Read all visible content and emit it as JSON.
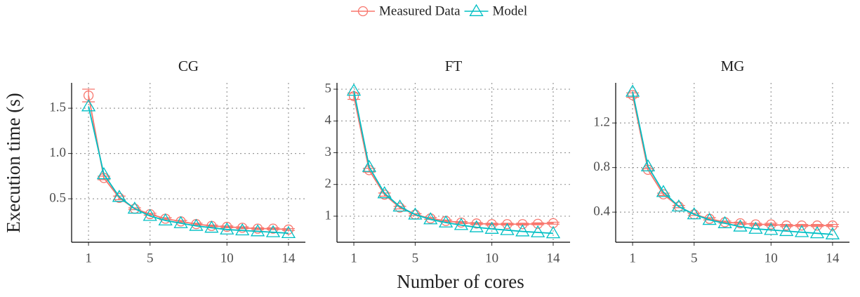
{
  "legend_position": "top",
  "xlabel": "Number of cores",
  "ylabel": "Execution time (s)",
  "chart_data": [
    {
      "type": "line",
      "title": "CG",
      "grid": true,
      "x": [
        1,
        2,
        3,
        4,
        5,
        6,
        7,
        8,
        9,
        10,
        11,
        12,
        13,
        14
      ],
      "xlim": [
        -0.1,
        15.1
      ],
      "xticks": [
        1,
        5,
        10,
        14
      ],
      "ylim": [
        0.02,
        1.78
      ],
      "yticks": [
        0.5,
        {
          "value": 1,
          "label": "1.0"
        },
        1.5
      ],
      "series": [
        {
          "name": "Measured Data",
          "color": "#F8766D",
          "marker": "circle",
          "values": [
            1.64,
            0.73,
            0.51,
            0.39,
            0.33,
            0.28,
            0.25,
            0.22,
            0.2,
            0.19,
            0.18,
            0.17,
            0.17,
            0.16
          ],
          "errors": [
            0.07,
            0.02,
            0.02,
            0.01,
            0.01,
            0.01,
            0.01,
            0.01,
            0.01,
            0.01,
            0.01,
            0.01,
            0.01,
            0.01
          ]
        },
        {
          "name": "Model",
          "color": "#00BFC4",
          "marker": "triangle",
          "values": [
            1.52,
            0.77,
            0.52,
            0.39,
            0.31,
            0.26,
            0.23,
            0.2,
            0.18,
            0.16,
            0.15,
            0.14,
            0.13,
            0.12
          ]
        }
      ]
    },
    {
      "type": "line",
      "title": "FT",
      "grid": true,
      "x": [
        1,
        2,
        3,
        4,
        5,
        6,
        7,
        8,
        9,
        10,
        11,
        12,
        13,
        14
      ],
      "xlim": [
        -0.1,
        15.1
      ],
      "xticks": [
        1,
        5,
        10,
        14
      ],
      "ylim": [
        0.18,
        5.2
      ],
      "yticks": [
        1,
        2,
        3,
        4,
        5
      ],
      "series": [
        {
          "name": "Measured Data",
          "color": "#F8766D",
          "marker": "circle",
          "values": [
            4.78,
            2.45,
            1.68,
            1.27,
            1.05,
            0.93,
            0.85,
            0.8,
            0.77,
            0.75,
            0.75,
            0.75,
            0.76,
            0.78
          ],
          "errors": [
            0.1,
            0.06,
            0.05,
            0.04,
            0.03,
            0.03,
            0.03,
            0.03,
            0.03,
            0.03,
            0.03,
            0.03,
            0.03,
            0.03
          ]
        },
        {
          "name": "Model",
          "color": "#00BFC4",
          "marker": "triangle",
          "values": [
            4.95,
            2.55,
            1.72,
            1.3,
            1.05,
            0.9,
            0.8,
            0.72,
            0.65,
            0.6,
            0.56,
            0.52,
            0.49,
            0.46
          ]
        }
      ]
    },
    {
      "type": "line",
      "title": "MG",
      "grid": true,
      "x": [
        1,
        2,
        3,
        4,
        5,
        6,
        7,
        8,
        9,
        10,
        11,
        12,
        13,
        14
      ],
      "xlim": [
        -0.1,
        15.1
      ],
      "xticks": [
        1,
        5,
        10,
        14
      ],
      "ylim": [
        0.13,
        1.56
      ],
      "yticks": [
        0.4,
        0.8,
        1.2
      ],
      "series": [
        {
          "name": "Measured Data",
          "color": "#F8766D",
          "marker": "circle",
          "values": [
            1.45,
            0.78,
            0.56,
            0.45,
            0.38,
            0.34,
            0.31,
            0.3,
            0.29,
            0.29,
            0.28,
            0.28,
            0.28,
            0.28
          ],
          "errors": [
            0.02,
            0.01,
            0.01,
            0.01,
            0.01,
            0.01,
            0.01,
            0.01,
            0.01,
            0.01,
            0.01,
            0.01,
            0.01,
            0.01
          ]
        },
        {
          "name": "Model",
          "color": "#00BFC4",
          "marker": "triangle",
          "values": [
            1.48,
            0.81,
            0.58,
            0.45,
            0.38,
            0.33,
            0.3,
            0.27,
            0.25,
            0.24,
            0.23,
            0.22,
            0.21,
            0.2
          ]
        }
      ]
    }
  ]
}
